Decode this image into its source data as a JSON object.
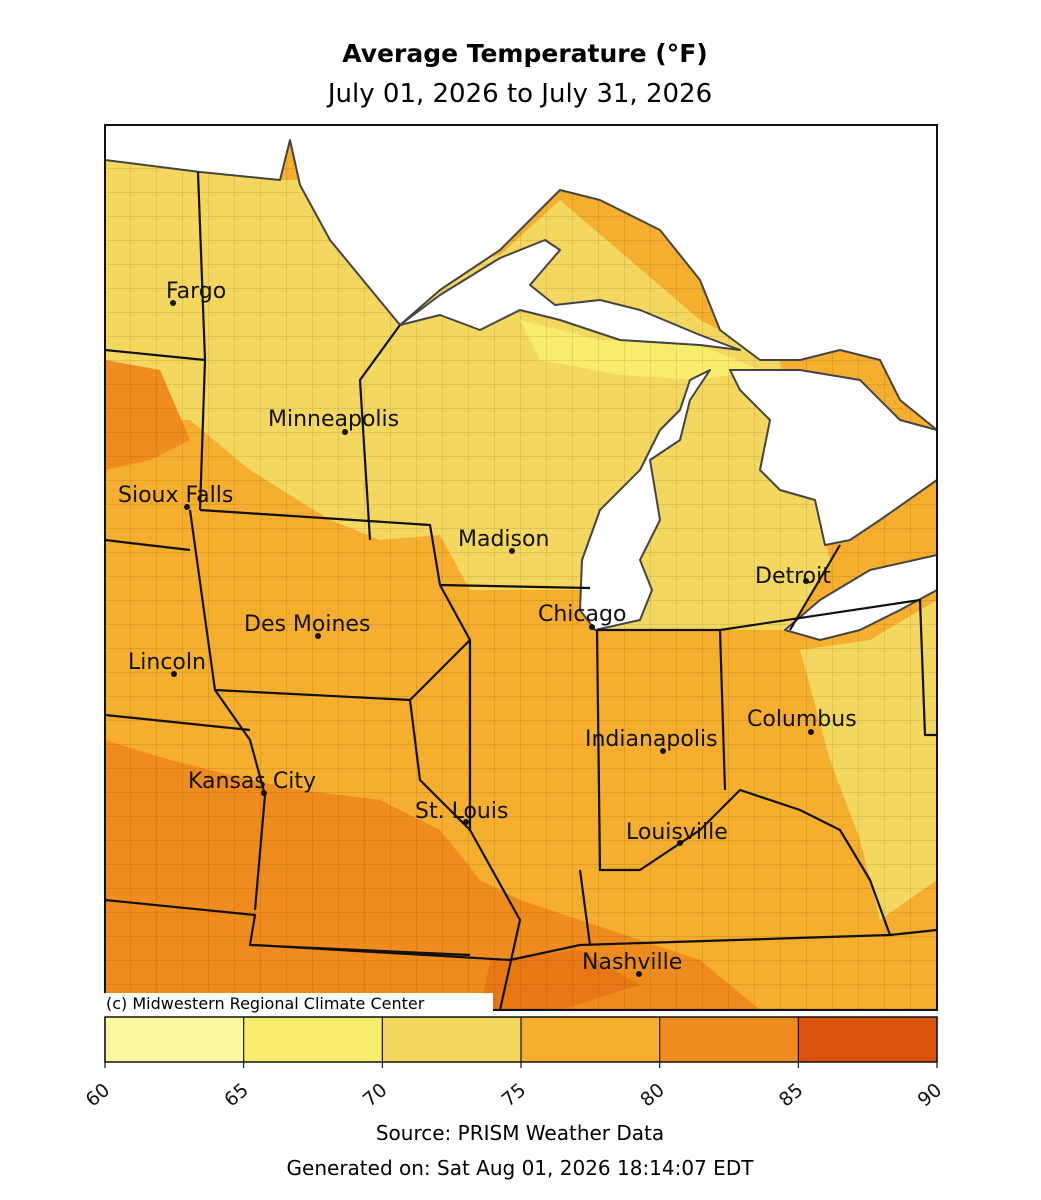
{
  "title": "Average Temperature (°F)",
  "subtitle": "July 01, 2026 to July 31, 2026",
  "credit": "(c) Midwestern Regional Climate Center",
  "cities": [
    "Fargo",
    "Minneapolis",
    "Sioux Falls",
    "Madison",
    "Detroit",
    "Des Moines",
    "Chicago",
    "Lincoln",
    "Columbus",
    "Indianapolis",
    "Kansas City",
    "St. Louis",
    "Louisville",
    "Nashville"
  ],
  "colorbar": {
    "bounds": [
      60,
      65,
      70,
      75,
      80,
      85,
      90
    ],
    "colors": [
      "#fbf6a0",
      "#f7ec6c",
      "#f3d75e",
      "#f5ae2d",
      "#ef8c1d",
      "#d9540a"
    ]
  },
  "source": "Source: PRISM Weather Data",
  "generated": "Generated on: Sat Aug 01, 2026 18:14:07 EDT"
}
